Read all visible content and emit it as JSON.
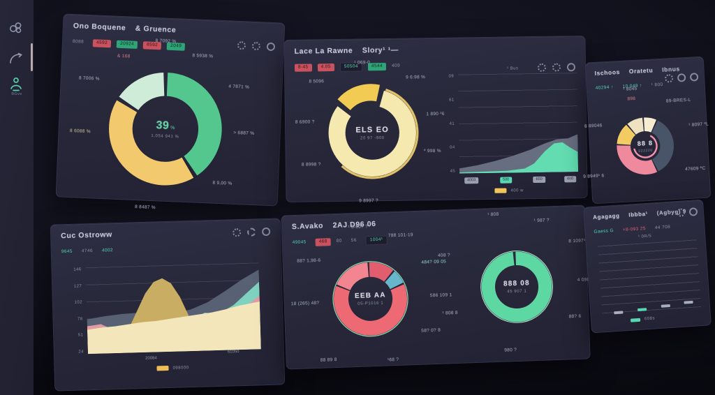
{
  "sidebar": {
    "person_label": "BGve"
  },
  "panels": {
    "p1": {
      "title_a": "Ono Boquene",
      "title_b": "& Gruence",
      "badges": [
        {
          "text": "8088",
          "style": "plain"
        },
        {
          "text": "4592",
          "style": "red"
        },
        {
          "text": "20924",
          "style": "green"
        },
        {
          "text": "8592",
          "style": "red"
        },
        {
          "text": "2049",
          "style": "green"
        }
      ],
      "icons": [
        "gear",
        "gear",
        "ring"
      ]
    },
    "p2": {
      "title_a": "Lace La Rawne",
      "title_b": "Slory¹ ¹—",
      "badges": [
        {
          "text": "8-45",
          "style": "red"
        },
        {
          "text": "4.05",
          "style": "red"
        },
        {
          "text": "50504",
          "style": "dark"
        },
        {
          "text": "4544",
          "style": "green"
        },
        {
          "text": "409",
          "style": "plain"
        }
      ],
      "icons": [
        "gear",
        "gear",
        "ring"
      ]
    },
    "p3": {
      "title_a": "Ischoos",
      "title_b": "Oratetu",
      "title_c": "Ibnus",
      "stats": [
        {
          "text": "40294 ↑",
          "style": "teal-text"
        },
        {
          "text": "10.049 ↑",
          "style": "teal-text"
        },
        {
          "text": "¹ 800",
          "style": "plain"
        }
      ],
      "icons": [
        "gear",
        "ring",
        "ring"
      ]
    },
    "p4": {
      "title_a": "Cuc Ostroww",
      "badges": [
        {
          "text": "9645",
          "style": "teal-text"
        },
        {
          "text": "4746",
          "style": "plain"
        },
        {
          "text": "4002",
          "style": "teal-text"
        }
      ],
      "icons": [
        "gear",
        "flower",
        "ring"
      ]
    },
    "p5": {
      "title_a": "S.Avako",
      "title_b": "2AJ D96 06",
      "badges": [
        {
          "text": "49045",
          "style": "teal-text"
        },
        {
          "text": "468",
          "style": "red"
        },
        {
          "text": "80",
          "style": "plain"
        },
        {
          "text": "56",
          "style": "plain"
        },
        {
          "text": "1004¹",
          "style": "dark"
        }
      ],
      "icons": []
    },
    "p6": {
      "title_a": "Agagagg",
      "title_b": "Ibbba¹",
      "title_c": "(Agbyg) 9",
      "badges": [
        {
          "text": "Gaess G",
          "style": "teal-text"
        },
        {
          "text": "+8-093 25",
          "style": "red-text"
        },
        {
          "text": "44 708",
          "style": "plain"
        }
      ],
      "icons": [
        "gear",
        "ring"
      ]
    }
  },
  "chart_data": {
    "p1_donut": {
      "type": "donut",
      "radius": 40,
      "thickness": 21,
      "gap": 3,
      "start": 0,
      "center_value": "39",
      "center_unit": "%",
      "center_sub": "1,054 941 %",
      "slices": [
        {
          "name": "green",
          "color": "#53c78e",
          "value": 41
        },
        {
          "name": "yellow",
          "color": "#f3c96e",
          "value": 43
        },
        {
          "name": "mint",
          "color": "#cfecd9",
          "value": 16
        }
      ],
      "labels": [
        "8 7092 %",
        "8 5938 %",
        "4 7871 %",
        "> 6887 %",
        "8 9,00 %",
        "8 8487 %",
        "8 6088 %",
        "8 7006 %",
        "& 168"
      ]
    },
    "p2_donut": {
      "type": "donut",
      "radius": 40,
      "thickness": 19,
      "gap": 2.5,
      "start": 0.045,
      "center_value": "ELS EO",
      "center_sub": "20 97 -900",
      "slices": [
        {
          "name": "pale-yellow",
          "color": "#f6e9af",
          "value": 82
        },
        {
          "name": "bright-yellow",
          "color": "#f2cb52",
          "value": 18,
          "explode": 6
        }
      ],
      "ring": {
        "color": "#dfc167",
        "radius": 51,
        "width": 2.5,
        "from": 0.05,
        "to": 0.62
      },
      "labels": [
        "¹ 069-0",
        "9 6:98 %",
        "1 890 ²6",
        "º 998 %",
        "9 8997 ?",
        "8 8998 ?",
        "8 6900 ?",
        "8 5096"
      ]
    },
    "p3_donut": {
      "type": "donut",
      "radius": 38,
      "thickness": 24,
      "gap": 2,
      "start": 0,
      "center_value": "88 8",
      "center_sub": "022220",
      "slices": [
        {
          "name": "cream",
          "color": "#f5ecd2",
          "value": 8
        },
        {
          "name": "slate",
          "color": "#485468",
          "value": 36
        },
        {
          "name": "pink",
          "color": "#ee899e",
          "value": 33
        },
        {
          "name": "yellow",
          "color": "#f2cc63",
          "value": 13
        },
        {
          "name": "cream-2",
          "color": "#efe2c0",
          "value": 10
        }
      ],
      "ring": {
        "color": "#ef93a8",
        "radius": 20,
        "width": 3,
        "from": 0.08,
        "to": 0.72
      },
      "labels": [
        "¹ 8045",
        "898",
        "89-BRES-L",
        "¹ 8097 ºL",
        "47609 ºC",
        "9 8949¹ 6",
        "8 89046"
      ]
    },
    "p5_donut_a": {
      "type": "donut",
      "radius": 40,
      "thickness": 20,
      "gap": 2,
      "start": 0,
      "center_value": "EEB AA",
      "center_sub": "05-P1016 1",
      "slices": [
        {
          "name": "dark-red",
          "color": "#e25d6e",
          "value": 12
        },
        {
          "name": "teal-blue",
          "color": "#68b6cb",
          "value": 7
        },
        {
          "name": "coral",
          "color": "#ed6a75",
          "value": 63
        },
        {
          "name": "light-pink",
          "color": "#f2858f",
          "value": 18
        }
      ],
      "outline": {
        "color": "#86d7b0",
        "radius": 51,
        "width": 1.2,
        "from": 0,
        "to": 1
      },
      "labels": [
        "¹ 5-00? ?",
        "788 101-19",
        "484? 09 05",
        "586 109 1",
        "58? 0? 8",
        "¹68 ?",
        "88 89 8",
        "18 (265) 48?",
        "88? 1,98-6"
      ]
    },
    "p5_donut_b": {
      "type": "donut",
      "radius": 40,
      "thickness": 19,
      "gap": 3.5,
      "start": 0,
      "center_value": "888 08",
      "center_sub": "45 907 1",
      "slices": [
        {
          "name": "mint",
          "color": "#5dd8a2",
          "value": 100
        }
      ],
      "outline": {
        "color": "#bfead6",
        "radius": 50.5,
        "width": 1,
        "from": 0,
        "to": 1
      },
      "labels": [
        "¹ 808",
        "¹ 987 ?",
        "8 1097¹",
        "4 098 ?",
        "88? 6",
        "980 ?",
        "¹ 808 8",
        "408 ?"
      ]
    },
    "p2_area": {
      "type": "area",
      "top_note": "¹ Bus",
      "ylabels": [
        "09",
        "61",
        "41",
        "04",
        "45"
      ],
      "series": [
        {
          "name": "gray",
          "color": "#6b7487",
          "opacity": 0.92,
          "points": [
            [
              0,
              95
            ],
            [
              15,
              92
            ],
            [
              30,
              88
            ],
            [
              45,
              83
            ],
            [
              60,
              77
            ],
            [
              72,
              71
            ],
            [
              82,
              67
            ],
            [
              92,
              66
            ],
            [
              100,
              62
            ]
          ]
        },
        {
          "name": "mint",
          "color": "#63dcb2",
          "opacity": 1,
          "points": [
            [
              0,
              99
            ],
            [
              40,
              98
            ],
            [
              55,
              96
            ],
            [
              63,
              91
            ],
            [
              72,
              79
            ],
            [
              80,
              71
            ],
            [
              87,
              70
            ],
            [
              93,
              75
            ],
            [
              100,
              80
            ]
          ]
        }
      ],
      "xticks": [
        {
          "text": "4003",
          "color": "gray"
        },
        {
          "text": "500",
          "color": "teal"
        },
        {
          "text": "650",
          "color": "gray"
        },
        {
          "text": "4n0",
          "color": "gray"
        }
      ],
      "legend": {
        "color": "#f1c75b",
        "text": "400 w"
      }
    },
    "p4_area": {
      "type": "area",
      "ylabels": [
        "146",
        "127",
        "102",
        "78",
        "51",
        "24"
      ],
      "series": [
        {
          "name": "slate",
          "color": "#5b6477",
          "opacity": 0.95,
          "points": [
            [
              0,
              60
            ],
            [
              10,
              57
            ],
            [
              20,
              55
            ],
            [
              30,
              54
            ],
            [
              40,
              55
            ],
            [
              50,
              56
            ],
            [
              60,
              52
            ],
            [
              70,
              44
            ],
            [
              80,
              32
            ],
            [
              90,
              19
            ],
            [
              100,
              8
            ]
          ]
        },
        {
          "name": "teal",
          "color": "#7fd2bf",
          "opacity": 1,
          "points": [
            [
              0,
              101
            ],
            [
              52,
              101
            ],
            [
              58,
              68
            ],
            [
              68,
              56
            ],
            [
              76,
              58
            ],
            [
              85,
              48
            ],
            [
              93,
              34
            ],
            [
              100,
              22
            ]
          ]
        },
        {
          "name": "pink",
          "color": "#e29aa3",
          "opacity": 1,
          "points": [
            [
              0,
              68
            ],
            [
              8,
              66
            ],
            [
              14,
              72
            ],
            [
              20,
              101
            ],
            [
              55,
              101
            ],
            [
              64,
              74
            ],
            [
              72,
              66
            ],
            [
              80,
              64
            ],
            [
              88,
              56
            ],
            [
              94,
              47
            ],
            [
              100,
              38
            ]
          ]
        },
        {
          "name": "olive",
          "color": "#c8ad63",
          "opacity": 1,
          "points": [
            [
              0,
              101
            ],
            [
              14,
              99
            ],
            [
              19,
              88
            ],
            [
              24,
              72
            ],
            [
              29,
              52
            ],
            [
              34,
              32
            ],
            [
              39,
              19
            ],
            [
              44,
              15
            ],
            [
              49,
              21
            ],
            [
              54,
              37
            ],
            [
              59,
              60
            ],
            [
              64,
              80
            ],
            [
              69,
              95
            ],
            [
              74,
              101
            ],
            [
              100,
              101
            ]
          ]
        },
        {
          "name": "cream",
          "color": "#f3e6ba",
          "opacity": 1,
          "points": [
            [
              0,
              72
            ],
            [
              8,
              70
            ],
            [
              16,
              69
            ],
            [
              24,
              67
            ],
            [
              32,
              65
            ],
            [
              40,
              64
            ],
            [
              48,
              62
            ],
            [
              56,
              60
            ],
            [
              64,
              58
            ],
            [
              72,
              56
            ],
            [
              80,
              53
            ],
            [
              88,
              49
            ],
            [
              94,
              47
            ],
            [
              100,
              45
            ]
          ]
        }
      ],
      "xlabels": [
        {
          "text": "20084"
        },
        {
          "text": "61050"
        }
      ],
      "legend": {
        "color": "#f0bd55",
        "text": "098000"
      }
    },
    "p6_lines": {
      "type": "table-lines",
      "note": "¹ 0R/5",
      "ticks": [
        {
          "color": "#a8adc0"
        },
        {
          "color": "#57d8b0"
        },
        {
          "color": "#a8adc0"
        },
        {
          "color": "#a8adc0"
        }
      ],
      "legend": {
        "color": "#57d8b0",
        "text": "608s"
      }
    }
  }
}
